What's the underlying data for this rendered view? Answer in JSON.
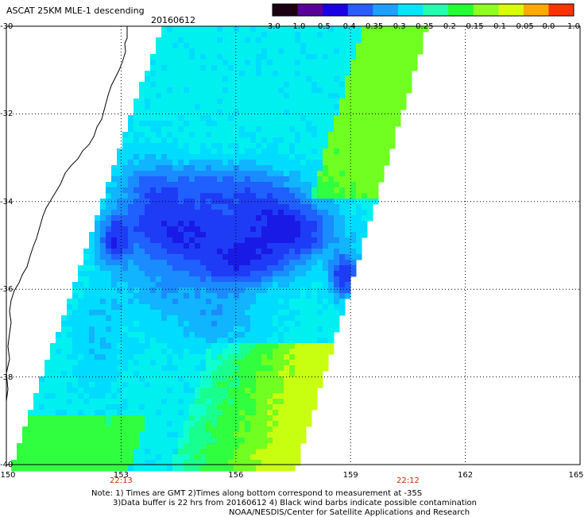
{
  "title": "ASCAT 25KM MLE-1 descending",
  "date": "20160612",
  "colorbar": {
    "ticks": [
      "-3.0",
      "-1.0",
      "-0.5",
      "-0.4",
      "-0.35",
      "-0.3",
      "-0.25",
      "-0.2",
      "-0.15",
      "-0.1",
      "-0.05",
      "0.0",
      "1.0"
    ],
    "colors": [
      "#1a0010",
      "#5a0096",
      "#1a00e6",
      "#2a5cff",
      "#1ea0ff",
      "#00e6ff",
      "#20ffb0",
      "#22ff33",
      "#90ff20",
      "#d8ff00",
      "#ffaa00",
      "#ff3300"
    ]
  },
  "axes": {
    "y_ticks": [
      "-30",
      "-32",
      "-34",
      "-36",
      "-38",
      "-40"
    ],
    "x_ticks": [
      "150",
      "153",
      "156",
      "159",
      "162",
      "165"
    ]
  },
  "pass_times": [
    {
      "lon": 153,
      "label": "22:13"
    },
    {
      "lon": 160.5,
      "label": "22:12"
    }
  ],
  "notes": {
    "line1": "Note: 1) Times are GMT 2)Times along bottom correspond to measurement at -35S",
    "line2": "3)Data buffer is 22 hrs from 20160612 4) Black wind barbs indicate possible contamination",
    "credit": "NOAA/NESDIS/Center for Satellite Applications and Research"
  },
  "colors": {
    "land_outline": "#000000",
    "grid": "#000000",
    "time_label": "#c03000"
  }
}
